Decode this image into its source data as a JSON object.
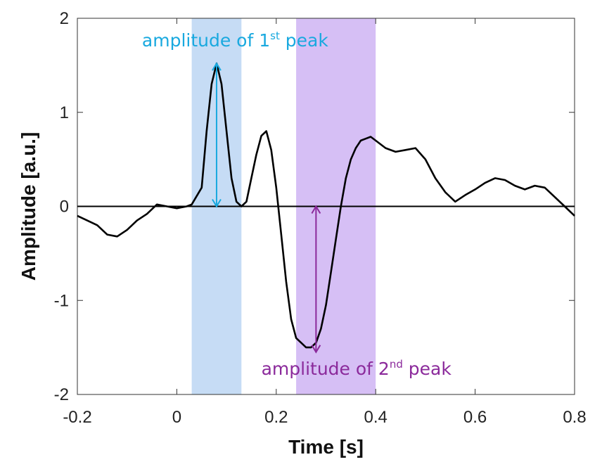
{
  "chart_data": {
    "type": "line",
    "title": "",
    "xlabel": "Time [s]",
    "ylabel": "Amplitude [a.u.]",
    "xlim": [
      -0.2,
      0.8
    ],
    "ylim": [
      -2,
      2
    ],
    "x_ticks": [
      -0.2,
      0,
      0.2,
      0.4,
      0.6,
      0.8
    ],
    "x_tick_labels": [
      "-0.2",
      "0",
      "0.2",
      "0.4",
      "0.6",
      "0.8"
    ],
    "y_ticks": [
      -2,
      -1,
      0,
      1,
      2
    ],
    "y_tick_labels": [
      "-2",
      "-1",
      "0",
      "1",
      "2"
    ],
    "grid": false,
    "baseline": 0,
    "colors": {
      "line": "#000000",
      "peak1": "#19a9df",
      "peak2": "#8b2a9b",
      "band1": "#c6dcf5",
      "band2": "#d6bff5"
    },
    "bands": [
      {
        "x0": 0.03,
        "x1": 0.13,
        "color": "#c6dcf5"
      },
      {
        "x0": 0.24,
        "x1": 0.4,
        "color": "#d6bff5"
      }
    ],
    "arrows": [
      {
        "x": 0.08,
        "y0": 0,
        "y1": 1.52,
        "color": "#19a9df"
      },
      {
        "x": 0.28,
        "y0": 0,
        "y1": -1.55,
        "color": "#8b2a9b"
      }
    ],
    "annotations": [
      {
        "text": "amplitude of 1",
        "sup": "st",
        "tail": " peak",
        "color": "#19a9df",
        "x": -0.07,
        "y": 1.7
      },
      {
        "text": "amplitude of 2",
        "sup": "nd",
        "tail": " peak",
        "color": "#8b2a9b",
        "x": 0.17,
        "y": -1.79
      }
    ],
    "series": [
      {
        "x": [
          -0.2,
          -0.18,
          -0.16,
          -0.14,
          -0.12,
          -0.1,
          -0.08,
          -0.06,
          -0.04,
          -0.02,
          0,
          0.02,
          0.03,
          0.05,
          0.06,
          0.07,
          0.08,
          0.09,
          0.1,
          0.11,
          0.12,
          0.13,
          0.14,
          0.15,
          0.16,
          0.17,
          0.18,
          0.19,
          0.2,
          0.21,
          0.22,
          0.23,
          0.24,
          0.25,
          0.26,
          0.27,
          0.28,
          0.29,
          0.3,
          0.31,
          0.32,
          0.33,
          0.34,
          0.35,
          0.36,
          0.37,
          0.38,
          0.39,
          0.4,
          0.42,
          0.44,
          0.46,
          0.48,
          0.5,
          0.52,
          0.54,
          0.56,
          0.58,
          0.6,
          0.62,
          0.64,
          0.66,
          0.68,
          0.7,
          0.72,
          0.74,
          0.76,
          0.78,
          0.8
        ],
        "y": [
          -0.1,
          -0.15,
          -0.2,
          -0.3,
          -0.32,
          -0.25,
          -0.15,
          -0.08,
          0.02,
          0.0,
          -0.02,
          0.0,
          0.02,
          0.2,
          0.8,
          1.3,
          1.52,
          1.3,
          0.8,
          0.3,
          0.05,
          0.0,
          0.05,
          0.3,
          0.55,
          0.75,
          0.8,
          0.6,
          0.2,
          -0.3,
          -0.8,
          -1.2,
          -1.4,
          -1.45,
          -1.5,
          -1.5,
          -1.45,
          -1.3,
          -1.05,
          -0.7,
          -0.35,
          0.0,
          0.3,
          0.5,
          0.62,
          0.7,
          0.72,
          0.74,
          0.7,
          0.62,
          0.58,
          0.6,
          0.62,
          0.5,
          0.3,
          0.15,
          0.05,
          0.12,
          0.18,
          0.25,
          0.3,
          0.28,
          0.22,
          0.18,
          0.22,
          0.2,
          0.1,
          0.0,
          -0.1
        ]
      }
    ]
  }
}
